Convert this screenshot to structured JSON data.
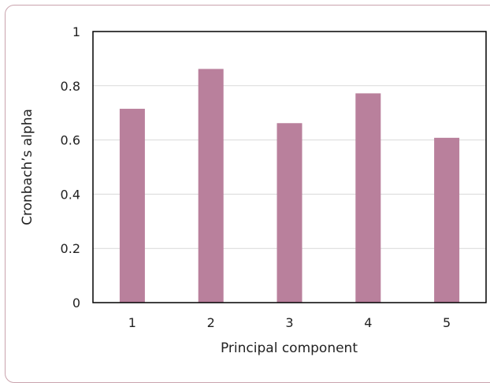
{
  "chart_data": {
    "type": "bar",
    "categories": [
      "1",
      "2",
      "3",
      "4",
      "5"
    ],
    "values": [
      0.715,
      0.862,
      0.662,
      0.772,
      0.608
    ],
    "xlabel": "Principal component",
    "ylabel": "Cronbach’s alpha",
    "ylim": [
      0,
      1
    ],
    "yticks": [
      "0",
      "0.2",
      "0.4",
      "0.6",
      "0.8",
      "1"
    ],
    "ytick_values": [
      0,
      0.2,
      0.4,
      0.6,
      0.8,
      1
    ],
    "grid": true,
    "legend": "none",
    "bar_color": "#b9809c",
    "grid_color": "#d9d9d9",
    "frame_color": "#c9a3ad"
  }
}
